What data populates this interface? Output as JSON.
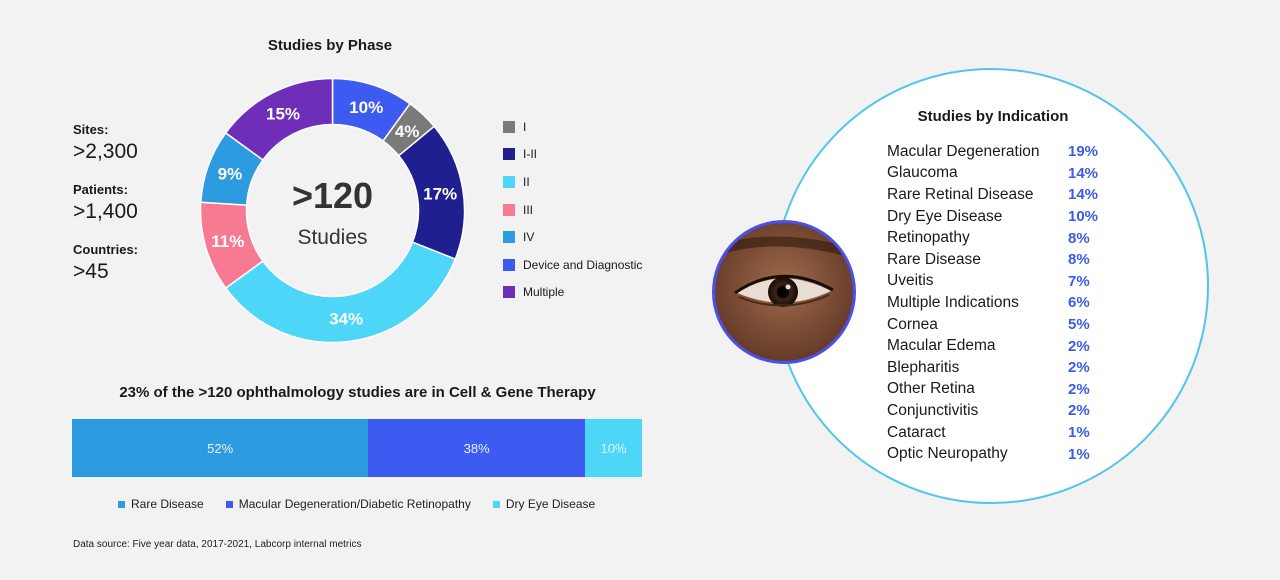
{
  "donut": {
    "title": "Studies by Phase",
    "center_value": ">120",
    "center_label": "Studies"
  },
  "stats": [
    {
      "label": "Sites:",
      "value": ">2,300"
    },
    {
      "label": "Patients:",
      "value": ">1,400"
    },
    {
      "label": "Countries:",
      "value": ">45"
    }
  ],
  "bar": {
    "title": "23% of the >120 ophthalmology studies are in Cell & Gene Therapy"
  },
  "indication": {
    "title": "Studies by Indication"
  },
  "source": "Data source: Five year data, 2017-2021, Labcorp internal metrics",
  "eye_image": {
    "icon": "eye-photo"
  },
  "chart_data": [
    {
      "type": "pie",
      "title": "Studies by Phase",
      "donut": true,
      "start_label": "Device and Diagnostic",
      "slices": [
        {
          "label": "Device and Diagnostic",
          "value": 10,
          "text": "10%",
          "color": "#3d5af1"
        },
        {
          "label": "I",
          "value": 4,
          "text": "4%",
          "color": "#7a7a7a"
        },
        {
          "label": "I-II",
          "value": 17,
          "text": "17%",
          "color": "#1f1f8f"
        },
        {
          "label": "II",
          "value": 34,
          "text": "34%",
          "color": "#4dd6f7"
        },
        {
          "label": "III",
          "value": 11,
          "text": "11%",
          "color": "#f77a93"
        },
        {
          "label": "IV",
          "value": 9,
          "text": "9%",
          "color": "#2c9be0"
        },
        {
          "label": "Multiple",
          "value": 15,
          "text": "15%",
          "color": "#6e2eb8"
        }
      ],
      "legend": [
        "I",
        "I-II",
        "II",
        "III",
        "IV",
        "Device and Diagnostic",
        "Multiple"
      ],
      "legend_placement": "right"
    },
    {
      "type": "bar",
      "stacked": true,
      "orientation": "horizontal",
      "title": "23% of the >120 ophthalmology studies are in Cell & Gene Therapy",
      "series": [
        {
          "name": "Rare Disease",
          "value": 52,
          "text": "52%",
          "color": "#2c9be0"
        },
        {
          "name": "Macular Degeneration/Diabetic Retinopathy",
          "value": 38,
          "text": "38%",
          "color": "#3d5af1"
        },
        {
          "name": "Dry Eye Disease",
          "value": 10,
          "text": "10%",
          "color": "#4dd6f7"
        }
      ],
      "legend_placement": "bottom"
    },
    {
      "type": "table",
      "title": "Studies by Indication",
      "rows": [
        {
          "name": "Macular Degeneration",
          "value": 19,
          "text": "19%"
        },
        {
          "name": "Glaucoma",
          "value": 14,
          "text": "14%"
        },
        {
          "name": "Rare Retinal Disease",
          "value": 14,
          "text": "14%"
        },
        {
          "name": "Dry Eye Disease",
          "value": 10,
          "text": "10%"
        },
        {
          "name": "Retinopathy",
          "value": 8,
          "text": "8%"
        },
        {
          "name": "Rare Disease",
          "value": 8,
          "text": "8%"
        },
        {
          "name": "Uveitis",
          "value": 7,
          "text": "7%"
        },
        {
          "name": "Multiple Indications",
          "value": 6,
          "text": "6%"
        },
        {
          "name": "Cornea",
          "value": 5,
          "text": "5%"
        },
        {
          "name": "Macular Edema",
          "value": 2,
          "text": "2%"
        },
        {
          "name": "Blepharitis",
          "value": 2,
          "text": "2%"
        },
        {
          "name": "Other Retina",
          "value": 2,
          "text": "2%"
        },
        {
          "name": "Conjunctivitis",
          "value": 2,
          "text": "2%"
        },
        {
          "name": "Cataract",
          "value": 1,
          "text": "1%"
        },
        {
          "name": "Optic Neuropathy",
          "value": 1,
          "text": "1%"
        }
      ]
    }
  ]
}
